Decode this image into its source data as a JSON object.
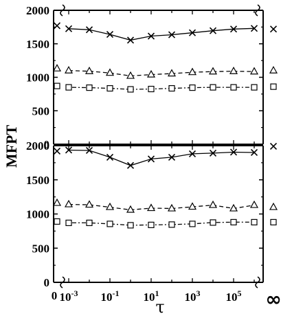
{
  "chart_data": {
    "type": "line",
    "ylabel": "MFPT",
    "xlabel": "τ",
    "x_scale": "log",
    "x_ticks": [
      {
        "exp": "-3",
        "value": 0.001
      },
      {
        "exp": "-1",
        "value": 0.1
      },
      {
        "exp": "1",
        "value": 10
      },
      {
        "exp": "3",
        "value": 1000
      },
      {
        "exp": "5",
        "value": 100000
      }
    ],
    "x_extra_ticks": {
      "left": "0",
      "right": "∞"
    },
    "y_ticks": [
      "0",
      "500",
      "1000",
      "1500",
      "2000"
    ],
    "ylim": [
      0,
      2000
    ],
    "x": [
      0.001,
      0.01,
      0.1,
      1,
      10,
      100,
      1000,
      10000,
      100000,
      1000000
    ],
    "panels": [
      {
        "series": [
          {
            "marker": "x",
            "line": "solid",
            "tau0": 1770,
            "tau_inf": 1720,
            "values": [
              1725,
              1710,
              1640,
              1555,
              1615,
              1635,
              1665,
              1695,
              1720,
              1730
            ]
          },
          {
            "marker": "triangle",
            "line": "dashed",
            "tau0": 1130,
            "tau_inf": 1100,
            "values": [
              1100,
              1090,
              1065,
              1020,
              1040,
              1055,
              1075,
              1085,
              1090,
              1085
            ]
          },
          {
            "marker": "square",
            "line": "dashdot",
            "tau0": 870,
            "tau_inf": 860,
            "values": [
              850,
              845,
              835,
              820,
              825,
              835,
              845,
              850,
              850,
              850
            ]
          }
        ]
      },
      {
        "series": [
          {
            "marker": "x",
            "line": "solid",
            "tau0": 1920,
            "tau_inf": 1990,
            "values": [
              1935,
              1930,
              1830,
              1710,
              1805,
              1830,
              1880,
              1890,
              1905,
              1900
            ]
          },
          {
            "marker": "triangle",
            "line": "dashed",
            "tau0": 1160,
            "tau_inf": 1100,
            "values": [
              1140,
              1135,
              1100,
              1060,
              1085,
              1080,
              1105,
              1130,
              1080,
              1130
            ]
          },
          {
            "marker": "square",
            "line": "dashdot",
            "tau0": 890,
            "tau_inf": 880,
            "values": [
              870,
              870,
              855,
              835,
              840,
              845,
              855,
              875,
              880,
              880
            ]
          }
        ]
      }
    ]
  }
}
